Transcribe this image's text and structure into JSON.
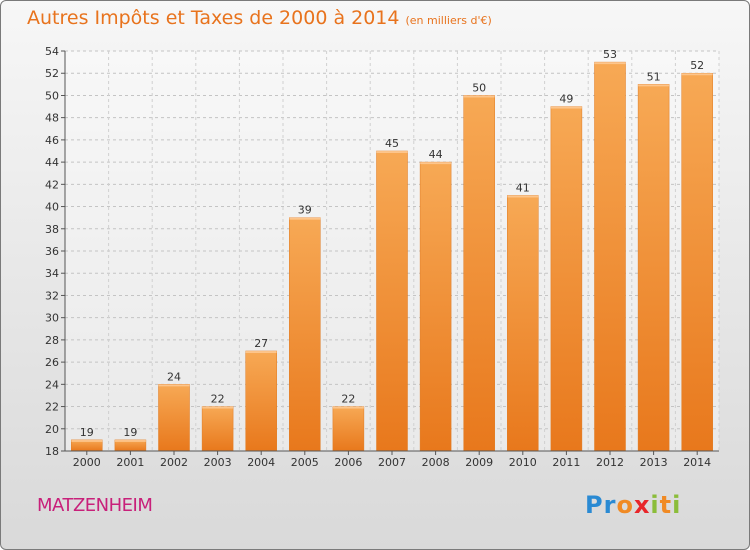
{
  "header": {
    "title": "Autres Impôts et Taxes de 2000 à 2014",
    "unit": "(en milliers d'€)"
  },
  "footer": {
    "commune": "MATZENHEIM",
    "logo_letters": [
      "P",
      "r",
      "o",
      "x",
      "i",
      "t",
      "i"
    ]
  },
  "colors": {
    "bar_light": "#f7a955",
    "bar_dark": "#e8781c",
    "accent": "#e8731d",
    "commune": "#c8207a",
    "logo": [
      "#2a8ad3",
      "#2a8ad3",
      "#f08a24",
      "#e8262a",
      "#8bbd3a",
      "#f08a24",
      "#8bbd3a"
    ]
  },
  "chart_data": {
    "type": "bar",
    "title": "Autres Impôts et Taxes de 2000 à 2014",
    "subtitle": "(en milliers d'€)",
    "categories": [
      "2000",
      "2001",
      "2002",
      "2003",
      "2004",
      "2005",
      "2006",
      "2007",
      "2008",
      "2009",
      "2010",
      "2011",
      "2012",
      "2013",
      "2014"
    ],
    "values": [
      19,
      19,
      24,
      22,
      27,
      39,
      22,
      45,
      44,
      50,
      41,
      49,
      53,
      51,
      52
    ],
    "ylim": [
      18,
      54
    ],
    "yticks": [
      18,
      20,
      22,
      24,
      26,
      28,
      30,
      32,
      34,
      36,
      38,
      40,
      42,
      44,
      46,
      48,
      50,
      52,
      54
    ],
    "grid": true,
    "xlabel": "",
    "ylabel": ""
  }
}
